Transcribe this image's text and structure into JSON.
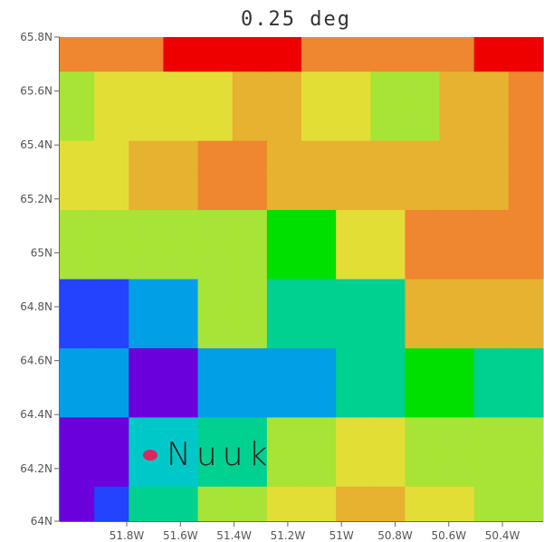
{
  "title": "0.25 deg",
  "colors": {
    "O": "#ef8630",
    "R": "#ef0000",
    "Y": "#e3de36",
    "L": "#a8e435",
    "A": "#e6b22f",
    "G": "#00e000",
    "B": "#2243ff",
    "C": "#009fe6",
    "T": "#00d090",
    "P": "#6a00dc",
    "Q": "#00c8c8",
    "marker": "#e0245e",
    "axis": "#666666"
  },
  "grid_rows": [
    "OOORRRR OOOOOR",
    "LYYYYAAYYLLAAO",
    "LYYYYAAYYLLAAO",
    "YYAAOOAAAAAAAO",
    "YYAAOOAAAAAAAO",
    "LLLLLLGGYYOOOO",
    "LLLLLLGGYYOOOO",
    "BBCCLLTTTTAAAA",
    "BBCCLLTTTTAAAA",
    "CCPPCCCCTTGGTT",
    "CCPPCCCCTTGGTT",
    "PPQQTTLLYYLLLL",
    "PPQQTTLLYYLLLL",
    "PBTTLLYYAAYYLL"
  ],
  "x_ticks": [
    "51.8W",
    "51.6W",
    "51.4W",
    "51.2W",
    "51W",
    "50.8W",
    "50.6W",
    "50.4W"
  ],
  "y_ticks": [
    "65.8N",
    "65.6N",
    "65.4N",
    "65.2N",
    "65N",
    "64.8N",
    "64.6N",
    "64.4N",
    "64.2N",
    "64N"
  ],
  "place": {
    "name": "Nuuk"
  }
}
